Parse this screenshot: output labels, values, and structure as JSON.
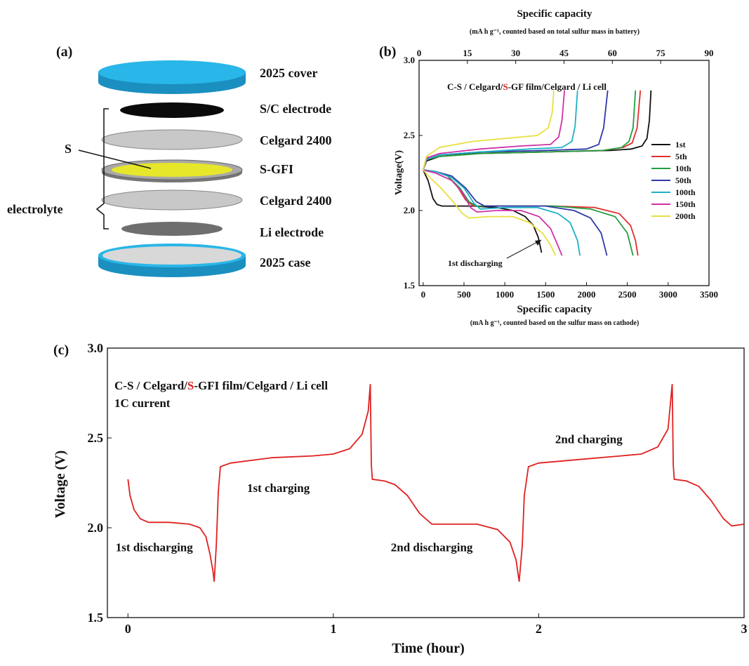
{
  "panel_a": {
    "label": "(a)",
    "layers": [
      {
        "label": "2025 cover",
        "color": "#29b6e8"
      },
      {
        "label": "S/C electrode",
        "color": "#0b0b0b"
      },
      {
        "label": "Celgard 2400",
        "color": "#c8c8c8"
      },
      {
        "label": "S-GFI",
        "color": "#e6e62a"
      },
      {
        "label": "Celgard 2400",
        "color": "#c8c8c8"
      },
      {
        "label": "Li electrode",
        "color": "#6e6e6e"
      },
      {
        "label": "2025 case",
        "color": "#29b6e8"
      }
    ],
    "s_label": "S",
    "electrolyte_label": "electrolyte"
  },
  "chart_data": [
    {
      "id": "b",
      "type": "line",
      "panel_label": "(b)",
      "annotation": {
        "prefix": "C-S / Celgard/",
        "highlight": "S",
        "suffix": "-GF film/Celgard /  Li   cell",
        "highlight_color": "#e02020"
      },
      "xlabel": "Specific capacity",
      "xlabel_sub": "(mA h g⁻¹, counted based on the sulfur mass on cathode)",
      "x2label": "Specific capacity",
      "x2label_sub": "(mA h g⁻¹, counted based on total sulfur mass in battery)",
      "ylabel": "Voltage(V)",
      "xlim": [
        -50,
        3500
      ],
      "ylim": [
        1.5,
        3.0
      ],
      "xticks": [
        "0",
        "500",
        "1000",
        "1500",
        "2000",
        "2500",
        "3000",
        "3500"
      ],
      "yticks": [
        "1.5",
        "2.0",
        "2.5",
        "3.0"
      ],
      "x2ticks": [
        "0",
        "15",
        "30",
        "45",
        "60",
        "75",
        "90"
      ],
      "x2lim": [
        0,
        90
      ],
      "legend_position": "right",
      "arrow_label": "1st discharging",
      "series": [
        {
          "name": "1st",
          "color": "#111111",
          "discharge": [
            [
              0,
              2.27
            ],
            [
              60,
              2.2
            ],
            [
              120,
              2.08
            ],
            [
              170,
              2.04
            ],
            [
              230,
              2.03
            ],
            [
              600,
              2.03
            ],
            [
              900,
              2.02
            ],
            [
              1100,
              2.0
            ],
            [
              1250,
              1.96
            ],
            [
              1350,
              1.9
            ],
            [
              1410,
              1.82
            ],
            [
              1450,
              1.72
            ]
          ],
          "charge": [
            [
              0,
              2.27
            ],
            [
              40,
              2.33
            ],
            [
              200,
              2.36
            ],
            [
              600,
              2.38
            ],
            [
              1500,
              2.39
            ],
            [
              2300,
              2.4
            ],
            [
              2550,
              2.41
            ],
            [
              2680,
              2.43
            ],
            [
              2740,
              2.48
            ],
            [
              2770,
              2.6
            ],
            [
              2790,
              2.8
            ]
          ]
        },
        {
          "name": "5th",
          "color": "#e03030",
          "discharge": [
            [
              0,
              2.27
            ],
            [
              150,
              2.26
            ],
            [
              300,
              2.23
            ],
            [
              420,
              2.16
            ],
            [
              520,
              2.07
            ],
            [
              620,
              2.03
            ],
            [
              900,
              2.03
            ],
            [
              1600,
              2.03
            ],
            [
              2100,
              2.02
            ],
            [
              2400,
              1.98
            ],
            [
              2540,
              1.9
            ],
            [
              2600,
              1.8
            ],
            [
              2630,
              1.7
            ]
          ],
          "charge": [
            [
              0,
              2.27
            ],
            [
              40,
              2.34
            ],
            [
              200,
              2.36
            ],
            [
              700,
              2.38
            ],
            [
              1500,
              2.39
            ],
            [
              2200,
              2.4
            ],
            [
              2450,
              2.42
            ],
            [
              2560,
              2.45
            ],
            [
              2620,
              2.55
            ],
            [
              2660,
              2.8
            ]
          ]
        },
        {
          "name": "10th",
          "color": "#20a040",
          "discharge": [
            [
              0,
              2.27
            ],
            [
              150,
              2.26
            ],
            [
              300,
              2.23
            ],
            [
              450,
              2.15
            ],
            [
              560,
              2.06
            ],
            [
              650,
              2.03
            ],
            [
              1000,
              2.03
            ],
            [
              1600,
              2.03
            ],
            [
              2050,
              2.01
            ],
            [
              2350,
              1.96
            ],
            [
              2500,
              1.85
            ],
            [
              2570,
              1.7
            ]
          ],
          "charge": [
            [
              0,
              2.27
            ],
            [
              40,
              2.34
            ],
            [
              200,
              2.36
            ],
            [
              700,
              2.38
            ],
            [
              1500,
              2.39
            ],
            [
              2200,
              2.4
            ],
            [
              2430,
              2.42
            ],
            [
              2520,
              2.46
            ],
            [
              2570,
              2.55
            ],
            [
              2600,
              2.8
            ]
          ]
        },
        {
          "name": "50th",
          "color": "#3038a8",
          "discharge": [
            [
              0,
              2.27
            ],
            [
              150,
              2.26
            ],
            [
              350,
              2.23
            ],
            [
              520,
              2.15
            ],
            [
              650,
              2.06
            ],
            [
              750,
              2.03
            ],
            [
              1100,
              2.03
            ],
            [
              1500,
              2.03
            ],
            [
              1850,
              2.0
            ],
            [
              2050,
              1.95
            ],
            [
              2180,
              1.85
            ],
            [
              2250,
              1.7
            ]
          ],
          "charge": [
            [
              0,
              2.27
            ],
            [
              40,
              2.34
            ],
            [
              200,
              2.37
            ],
            [
              700,
              2.39
            ],
            [
              1500,
              2.4
            ],
            [
              2000,
              2.41
            ],
            [
              2150,
              2.44
            ],
            [
              2210,
              2.55
            ],
            [
              2260,
              2.8
            ]
          ]
        },
        {
          "name": "100th",
          "color": "#20b0c8",
          "discharge": [
            [
              0,
              2.27
            ],
            [
              150,
              2.26
            ],
            [
              350,
              2.22
            ],
            [
              500,
              2.15
            ],
            [
              620,
              2.05
            ],
            [
              700,
              2.01
            ],
            [
              1000,
              2.02
            ],
            [
              1400,
              2.02
            ],
            [
              1650,
              1.98
            ],
            [
              1800,
              1.92
            ],
            [
              1890,
              1.8
            ],
            [
              1920,
              1.7
            ]
          ],
          "charge": [
            [
              0,
              2.27
            ],
            [
              40,
              2.34
            ],
            [
              200,
              2.37
            ],
            [
              700,
              2.39
            ],
            [
              1300,
              2.41
            ],
            [
              1700,
              2.42
            ],
            [
              1820,
              2.46
            ],
            [
              1860,
              2.56
            ],
            [
              1890,
              2.8
            ]
          ]
        },
        {
          "name": "150th",
          "color": "#d030a8",
          "discharge": [
            [
              0,
              2.27
            ],
            [
              150,
              2.25
            ],
            [
              350,
              2.2
            ],
            [
              480,
              2.12
            ],
            [
              580,
              2.02
            ],
            [
              660,
              1.99
            ],
            [
              900,
              2.0
            ],
            [
              1200,
              2.0
            ],
            [
              1420,
              1.96
            ],
            [
              1560,
              1.88
            ],
            [
              1640,
              1.78
            ],
            [
              1700,
              1.7
            ]
          ],
          "charge": [
            [
              0,
              2.27
            ],
            [
              40,
              2.35
            ],
            [
              200,
              2.38
            ],
            [
              700,
              2.41
            ],
            [
              1200,
              2.43
            ],
            [
              1560,
              2.44
            ],
            [
              1660,
              2.49
            ],
            [
              1700,
              2.6
            ],
            [
              1730,
              2.8
            ]
          ]
        },
        {
          "name": "200th",
          "color": "#e8e040",
          "discharge": [
            [
              0,
              2.27
            ],
            [
              80,
              2.22
            ],
            [
              200,
              2.16
            ],
            [
              350,
              2.07
            ],
            [
              480,
              1.98
            ],
            [
              560,
              1.95
            ],
            [
              800,
              1.96
            ],
            [
              1100,
              1.96
            ],
            [
              1300,
              1.92
            ],
            [
              1460,
              1.85
            ],
            [
              1560,
              1.77
            ],
            [
              1620,
              1.7
            ]
          ],
          "charge": [
            [
              0,
              2.27
            ],
            [
              40,
              2.36
            ],
            [
              200,
              2.42
            ],
            [
              600,
              2.46
            ],
            [
              1000,
              2.48
            ],
            [
              1400,
              2.5
            ],
            [
              1530,
              2.55
            ],
            [
              1580,
              2.65
            ],
            [
              1600,
              2.8
            ]
          ]
        }
      ]
    },
    {
      "id": "c",
      "type": "line",
      "panel_label": "(c)",
      "annotation": {
        "prefix": "C-S / Celgard/",
        "highlight": "S",
        "suffix": "-GFI film/Celgard /  Li   cell",
        "highlight_color": "#e02020"
      },
      "annotation2": "1C current",
      "xlabel": "Time  (hour)",
      "ylabel": "Voltage  (V)",
      "xlim": [
        -0.1,
        3.0
      ],
      "ylim": [
        1.5,
        3.0
      ],
      "xticks": [
        "0",
        "1",
        "2",
        "3"
      ],
      "yticks": [
        "1.5",
        "2.0",
        "2.5",
        "3.0"
      ],
      "labels": [
        {
          "text": "1st discharging",
          "x": -0.06,
          "y": 1.87
        },
        {
          "text": "1st charging",
          "x": 0.58,
          "y": 2.2
        },
        {
          "text": "2nd discharging",
          "x": 1.28,
          "y": 1.87
        },
        {
          "text": "2nd charging",
          "x": 2.08,
          "y": 2.47
        }
      ],
      "series": [
        {
          "name": "",
          "color": "#e02020",
          "points": [
            [
              0.0,
              2.27
            ],
            [
              0.01,
              2.18
            ],
            [
              0.03,
              2.1
            ],
            [
              0.06,
              2.05
            ],
            [
              0.1,
              2.03
            ],
            [
              0.2,
              2.03
            ],
            [
              0.3,
              2.02
            ],
            [
              0.35,
              2.0
            ],
            [
              0.38,
              1.95
            ],
            [
              0.4,
              1.85
            ],
            [
              0.415,
              1.75
            ],
            [
              0.42,
              1.7
            ],
            [
              0.43,
              1.9
            ],
            [
              0.44,
              2.2
            ],
            [
              0.45,
              2.34
            ],
            [
              0.5,
              2.36
            ],
            [
              0.7,
              2.39
            ],
            [
              0.9,
              2.4
            ],
            [
              1.0,
              2.41
            ],
            [
              1.08,
              2.44
            ],
            [
              1.14,
              2.52
            ],
            [
              1.17,
              2.65
            ],
            [
              1.18,
              2.8
            ],
            [
              1.185,
              2.35
            ],
            [
              1.19,
              2.27
            ],
            [
              1.25,
              2.26
            ],
            [
              1.3,
              2.24
            ],
            [
              1.36,
              2.18
            ],
            [
              1.42,
              2.08
            ],
            [
              1.48,
              2.02
            ],
            [
              1.55,
              2.02
            ],
            [
              1.7,
              2.02
            ],
            [
              1.8,
              1.99
            ],
            [
              1.86,
              1.92
            ],
            [
              1.89,
              1.82
            ],
            [
              1.905,
              1.7
            ],
            [
              1.92,
              1.9
            ],
            [
              1.93,
              2.18
            ],
            [
              1.95,
              2.34
            ],
            [
              2.0,
              2.36
            ],
            [
              2.2,
              2.38
            ],
            [
              2.4,
              2.4
            ],
            [
              2.5,
              2.41
            ],
            [
              2.58,
              2.45
            ],
            [
              2.63,
              2.55
            ],
            [
              2.65,
              2.8
            ],
            [
              2.655,
              2.35
            ],
            [
              2.66,
              2.27
            ],
            [
              2.72,
              2.26
            ],
            [
              2.78,
              2.23
            ],
            [
              2.84,
              2.15
            ],
            [
              2.9,
              2.05
            ],
            [
              2.94,
              2.01
            ],
            [
              3.0,
              2.02
            ]
          ]
        }
      ]
    }
  ]
}
